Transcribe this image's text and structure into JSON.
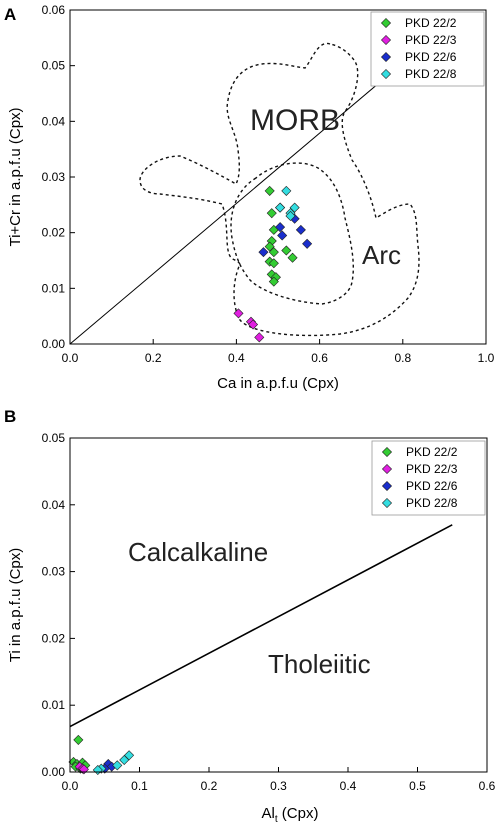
{
  "panels": [
    {
      "letter": "A",
      "xlabel": "Ca in a.p.f.u (Cpx)",
      "ylabel": "Ti+Cr in a.p.f.u (Cpx)",
      "region_labels": [
        "MORB",
        "Arc"
      ]
    },
    {
      "letter": "B",
      "xlabel": "Al",
      "xlabel_sub": "t",
      "xlabel_suffix": " (Cpx)",
      "ylabel": "Ti in a.p.f.u (Cpx)",
      "region_labels": [
        "Calcalkaline",
        "Tholeiitic"
      ]
    }
  ],
  "chart_data": [
    {
      "type": "scatter",
      "title": "",
      "xlabel": "Ca in a.p.f.u (Cpx)",
      "ylabel": "Ti+Cr in a.p.f.u (Cpx)",
      "xlim": [
        0,
        1.0
      ],
      "ylim": [
        0,
        0.06
      ],
      "x_ticks": [
        "0.0",
        "0.2",
        "0.4",
        "0.6",
        "0.8",
        "1.0"
      ],
      "y_ticks": [
        "0.00",
        "0.01",
        "0.02",
        "0.03",
        "0.04",
        "0.05",
        "0.06"
      ],
      "legend_position": "top-right",
      "grid": false,
      "series": [
        {
          "name": "PKD 22/2",
          "color": "#33cc33",
          "marker": "diamond",
          "points": [
            [
              0.48,
              0.0275
            ],
            [
              0.485,
              0.0235
            ],
            [
              0.505,
              0.0245
            ],
            [
              0.49,
              0.0205
            ],
            [
              0.485,
              0.0185
            ],
            [
              0.48,
              0.0175
            ],
            [
              0.49,
              0.0165
            ],
            [
              0.52,
              0.0168
            ],
            [
              0.535,
              0.0155
            ],
            [
              0.48,
              0.0148
            ],
            [
              0.49,
              0.0145
            ],
            [
              0.485,
              0.0125
            ],
            [
              0.495,
              0.012
            ],
            [
              0.49,
              0.0112
            ]
          ]
        },
        {
          "name": "PKD 22/3",
          "color": "#e020e0",
          "marker": "diamond",
          "points": [
            [
              0.405,
              0.0055
            ],
            [
              0.435,
              0.004
            ],
            [
              0.44,
              0.0035
            ],
            [
              0.455,
              0.0012
            ]
          ]
        },
        {
          "name": "PKD 22/6",
          "color": "#1a2ecc",
          "marker": "diamond",
          "points": [
            [
              0.505,
              0.021
            ],
            [
              0.51,
              0.0195
            ],
            [
              0.54,
              0.0225
            ],
            [
              0.555,
              0.0205
            ],
            [
              0.57,
              0.018
            ],
            [
              0.465,
              0.0165
            ]
          ]
        },
        {
          "name": "PKD 22/8",
          "color": "#33dde0",
          "marker": "diamond",
          "points": [
            [
              0.52,
              0.0275
            ],
            [
              0.505,
              0.0245
            ],
            [
              0.54,
              0.0245
            ],
            [
              0.53,
              0.0235
            ],
            [
              0.53,
              0.023
            ]
          ]
        }
      ],
      "reference_line": [
        [
          0,
          0
        ],
        [
          0.8,
          0.0505
        ]
      ],
      "regions": [
        "MORB",
        "Arc"
      ]
    },
    {
      "type": "scatter",
      "title": "",
      "xlabel": "Alt (Cpx)",
      "ylabel": "Ti in a.p.f.u (Cpx)",
      "xlim": [
        0,
        0.6
      ],
      "ylim": [
        0,
        0.05
      ],
      "x_ticks": [
        "0.0",
        "0.1",
        "0.2",
        "0.3",
        "0.4",
        "0.5",
        "0.6"
      ],
      "y_ticks": [
        "0.00",
        "0.01",
        "0.02",
        "0.03",
        "0.04",
        "0.05"
      ],
      "legend_position": "top-right",
      "grid": false,
      "series": [
        {
          "name": "PKD 22/2",
          "color": "#33cc33",
          "marker": "diamond",
          "points": [
            [
              0.012,
              0.0048
            ],
            [
              0.005,
              0.0015
            ],
            [
              0.01,
              0.0012
            ],
            [
              0.018,
              0.0014
            ],
            [
              0.022,
              0.001
            ],
            [
              0.008,
              0.0008
            ],
            [
              0.015,
              0.0005
            ]
          ]
        },
        {
          "name": "PKD 22/3",
          "color": "#e020e0",
          "marker": "diamond",
          "points": [
            [
              0.014,
              0.0008
            ],
            [
              0.018,
              0.0005
            ],
            [
              0.02,
              0.0004
            ]
          ]
        },
        {
          "name": "PKD 22/6",
          "color": "#1a2ecc",
          "marker": "diamond",
          "points": [
            [
              0.055,
              0.0012
            ],
            [
              0.06,
              0.0008
            ],
            [
              0.05,
              0.0005
            ]
          ]
        },
        {
          "name": "PKD 22/8",
          "color": "#33dde0",
          "marker": "diamond",
          "points": [
            [
              0.085,
              0.0025
            ],
            [
              0.078,
              0.0018
            ],
            [
              0.068,
              0.001
            ],
            [
              0.045,
              0.0005
            ],
            [
              0.04,
              0.0003
            ]
          ]
        }
      ],
      "reference_line": [
        [
          0,
          0.0068
        ],
        [
          0.55,
          0.037
        ]
      ],
      "regions": [
        "Calcalkaline",
        "Tholeiitic"
      ]
    }
  ]
}
